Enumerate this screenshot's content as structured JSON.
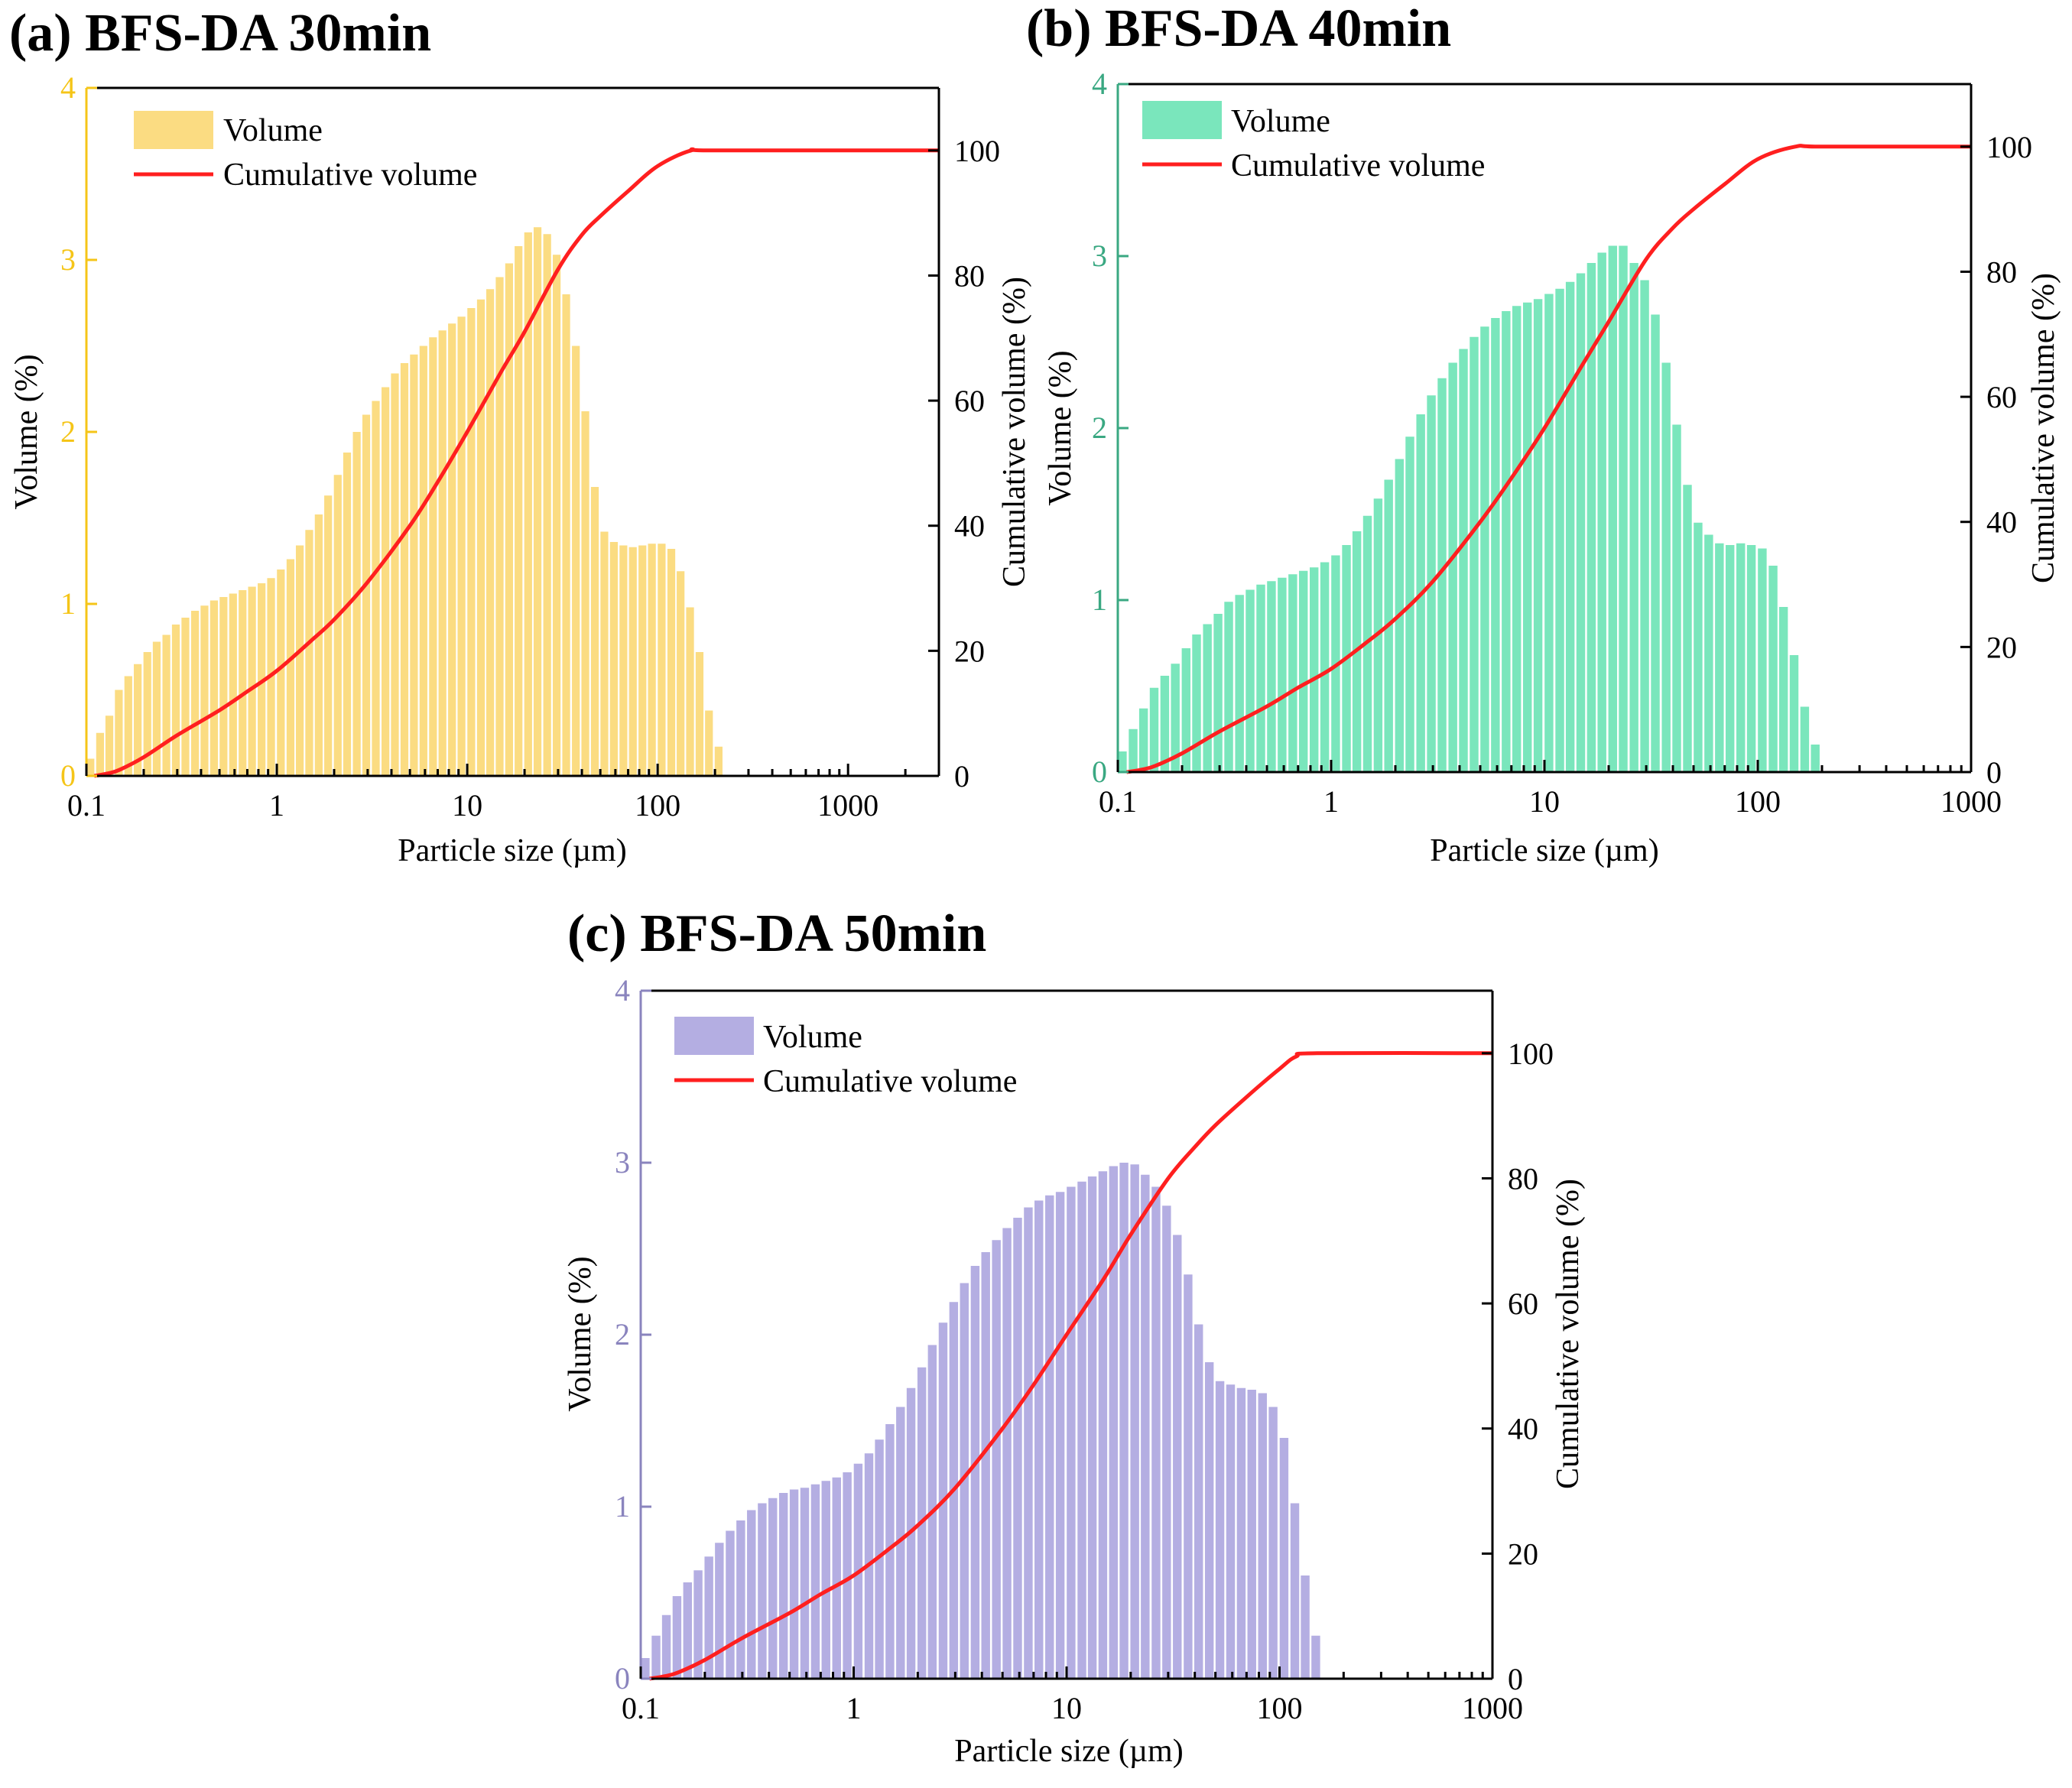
{
  "figure": {
    "tick_color_right": "#000000",
    "cumulative_color": "#ff1f1f"
  },
  "chart_data": [
    {
      "panel": "a",
      "type": "bar",
      "title": "(a) BFS-DA 30min",
      "xlabel": "Particle size (µm)",
      "ylabel": "Volume (%)",
      "y2label": "Cumulative volume (%)",
      "xscale": "log",
      "xlim": [
        0.1,
        3000
      ],
      "ylim": [
        0,
        4
      ],
      "y2lim": [
        0,
        110
      ],
      "x_ticks": [
        0.1,
        1,
        10,
        100,
        1000
      ],
      "x_tick_labels": [
        "0.1",
        "1",
        "10",
        "100",
        "1000"
      ],
      "y_ticks": [
        0,
        1,
        2,
        3,
        4
      ],
      "y_tick_labels": [
        "0",
        "1",
        "2",
        "3",
        "4"
      ],
      "y2_ticks": [
        0,
        20,
        40,
        60,
        80,
        100
      ],
      "y2_tick_labels": [
        "0",
        "20",
        "40",
        "60",
        "80",
        "100"
      ],
      "bar_color": "#fbdc82",
      "axis_color": "#f5c518",
      "legend": {
        "position": "top-left",
        "entries": [
          "Volume",
          "Cumulative volume"
        ]
      },
      "bars": {
        "x": [
          0.105,
          0.118,
          0.132,
          0.148,
          0.166,
          0.186,
          0.209,
          0.234,
          0.263,
          0.295,
          0.331,
          0.372,
          0.417,
          0.468,
          0.525,
          0.589,
          0.661,
          0.741,
          0.832,
          0.933,
          1.05,
          1.18,
          1.32,
          1.48,
          1.66,
          1.86,
          2.09,
          2.34,
          2.63,
          2.95,
          3.31,
          3.72,
          4.17,
          4.68,
          5.25,
          5.89,
          6.61,
          7.41,
          8.32,
          9.33,
          10.5,
          11.8,
          13.2,
          14.8,
          16.6,
          18.6,
          20.9,
          23.4,
          26.3,
          29.5,
          33.1,
          37.2,
          41.7,
          46.8,
          52.5,
          58.9,
          66.1,
          74.1,
          83.2,
          93.3,
          105,
          118,
          132,
          148,
          166,
          186,
          209
        ],
        "values": [
          0.1,
          0.25,
          0.35,
          0.5,
          0.58,
          0.65,
          0.72,
          0.78,
          0.82,
          0.88,
          0.92,
          0.96,
          0.99,
          1.02,
          1.04,
          1.06,
          1.08,
          1.1,
          1.12,
          1.15,
          1.2,
          1.26,
          1.34,
          1.43,
          1.52,
          1.63,
          1.75,
          1.88,
          2.0,
          2.1,
          2.18,
          2.26,
          2.34,
          2.4,
          2.45,
          2.5,
          2.55,
          2.59,
          2.63,
          2.67,
          2.72,
          2.77,
          2.83,
          2.9,
          2.98,
          3.08,
          3.16,
          3.19,
          3.15,
          3.03,
          2.8,
          2.5,
          2.12,
          1.68,
          1.42,
          1.36,
          1.34,
          1.33,
          1.34,
          1.35,
          1.35,
          1.32,
          1.19,
          0.98,
          0.72,
          0.38,
          0.17
        ]
      },
      "cumulative": {
        "x": [
          0.11,
          0.13,
          0.15,
          0.2,
          0.3,
          0.5,
          0.7,
          1,
          1.5,
          2,
          3,
          5,
          7,
          10,
          15,
          20,
          30,
          40,
          50,
          70,
          100,
          150,
          200,
          3000
        ],
        "values": [
          0,
          0.4,
          1,
          3,
          6.5,
          10.5,
          13.5,
          16.8,
          21.5,
          25,
          31,
          40,
          47,
          55,
          64.5,
          71,
          81,
          86.5,
          89.5,
          93.5,
          97.5,
          100,
          100,
          100
        ]
      }
    },
    {
      "panel": "b",
      "type": "bar",
      "title": "(b) BFS-DA 40min",
      "xlabel": "Particle size (µm)",
      "ylabel": "Volume (%)",
      "y2label": "Cumulative volume (%)",
      "xscale": "log",
      "xlim": [
        0.1,
        1000
      ],
      "ylim": [
        0,
        4
      ],
      "y2lim": [
        0,
        110
      ],
      "x_ticks": [
        0.1,
        1,
        10,
        100,
        1000
      ],
      "x_tick_labels": [
        "0.1",
        "1",
        "10",
        "100",
        "1000"
      ],
      "y_ticks": [
        0,
        1,
        2,
        3,
        4
      ],
      "y_tick_labels": [
        "0",
        "1",
        "2",
        "3",
        "4"
      ],
      "y2_ticks": [
        0,
        20,
        40,
        60,
        80,
        100
      ],
      "y2_tick_labels": [
        "0",
        "20",
        "40",
        "60",
        "80",
        "100"
      ],
      "bar_color": "#7ae6bc",
      "axis_color": "#3aa882",
      "legend": {
        "position": "top-left",
        "entries": [
          "Volume",
          "Cumulative volume"
        ]
      },
      "bars": {
        "x": [
          0.105,
          0.118,
          0.132,
          0.148,
          0.166,
          0.186,
          0.209,
          0.234,
          0.263,
          0.295,
          0.331,
          0.372,
          0.417,
          0.468,
          0.525,
          0.589,
          0.661,
          0.741,
          0.832,
          0.933,
          1.05,
          1.18,
          1.32,
          1.48,
          1.66,
          1.86,
          2.09,
          2.34,
          2.63,
          2.95,
          3.31,
          3.72,
          4.17,
          4.68,
          5.25,
          5.89,
          6.61,
          7.41,
          8.32,
          9.33,
          10.5,
          11.8,
          13.2,
          14.8,
          16.6,
          18.6,
          20.9,
          23.4,
          26.3,
          29.5,
          33.1,
          37.2,
          41.7,
          46.8,
          52.5,
          58.9,
          66.1,
          74.1,
          83.2,
          93.3,
          105,
          118,
          132,
          148,
          166,
          186
        ],
        "values": [
          0.12,
          0.25,
          0.37,
          0.49,
          0.56,
          0.63,
          0.72,
          0.8,
          0.86,
          0.92,
          0.99,
          1.03,
          1.06,
          1.09,
          1.11,
          1.13,
          1.15,
          1.17,
          1.19,
          1.22,
          1.26,
          1.32,
          1.4,
          1.49,
          1.59,
          1.7,
          1.82,
          1.95,
          2.08,
          2.19,
          2.29,
          2.38,
          2.46,
          2.53,
          2.59,
          2.64,
          2.68,
          2.71,
          2.73,
          2.75,
          2.78,
          2.81,
          2.85,
          2.9,
          2.96,
          3.02,
          3.06,
          3.06,
          2.96,
          2.86,
          2.66,
          2.38,
          2.02,
          1.67,
          1.45,
          1.38,
          1.33,
          1.32,
          1.33,
          1.32,
          1.3,
          1.2,
          0.96,
          0.68,
          0.38,
          0.16
        ]
      },
      "cumulative": {
        "x": [
          0.11,
          0.13,
          0.15,
          0.2,
          0.3,
          0.5,
          0.7,
          1,
          1.5,
          2,
          3,
          5,
          7,
          10,
          15,
          20,
          30,
          40,
          50,
          70,
          100,
          150,
          200,
          1000
        ],
        "values": [
          0,
          0.4,
          1,
          3,
          6.5,
          10.5,
          13.5,
          16.5,
          21,
          24.5,
          30.5,
          40,
          47,
          55,
          65,
          72,
          82,
          87,
          90,
          94,
          98,
          100,
          100,
          100
        ]
      }
    },
    {
      "panel": "c",
      "type": "bar",
      "title": "(c) BFS-DA 50min",
      "xlabel": "Particle size (µm)",
      "ylabel": "Volume (%)",
      "y2label": "Cumulative volume (%)",
      "xscale": "log",
      "xlim": [
        0.1,
        1000
      ],
      "ylim": [
        0,
        4
      ],
      "y2lim": [
        0,
        110
      ],
      "x_ticks": [
        0.1,
        1,
        10,
        100,
        1000
      ],
      "x_tick_labels": [
        "0.1",
        "1",
        "10",
        "100",
        "1000"
      ],
      "y_ticks": [
        0,
        1,
        2,
        3,
        4
      ],
      "y_tick_labels": [
        "0",
        "1",
        "2",
        "3",
        "4"
      ],
      "y2_ticks": [
        0,
        20,
        40,
        60,
        80,
        100
      ],
      "y2_tick_labels": [
        "0",
        "20",
        "40",
        "60",
        "80",
        "100"
      ],
      "bar_color": "#b4aee2",
      "axis_color": "#8a84be",
      "legend": {
        "position": "top-left",
        "entries": [
          "Volume",
          "Cumulative volume"
        ]
      },
      "bars": {
        "x": [
          0.105,
          0.118,
          0.132,
          0.148,
          0.166,
          0.186,
          0.209,
          0.234,
          0.263,
          0.295,
          0.331,
          0.372,
          0.417,
          0.468,
          0.525,
          0.589,
          0.661,
          0.741,
          0.832,
          0.933,
          1.05,
          1.18,
          1.32,
          1.48,
          1.66,
          1.86,
          2.09,
          2.34,
          2.63,
          2.95,
          3.31,
          3.72,
          4.17,
          4.68,
          5.25,
          5.89,
          6.61,
          7.41,
          8.32,
          9.33,
          10.5,
          11.8,
          13.2,
          14.8,
          16.6,
          18.6,
          20.9,
          23.4,
          26.3,
          29.5,
          33.1,
          37.2,
          41.7,
          46.8,
          52.5,
          58.9,
          66.1,
          74.1,
          83.2,
          93.3,
          105,
          118,
          132,
          148
        ],
        "values": [
          0.12,
          0.25,
          0.37,
          0.48,
          0.56,
          0.63,
          0.71,
          0.79,
          0.86,
          0.92,
          0.98,
          1.02,
          1.05,
          1.08,
          1.1,
          1.11,
          1.13,
          1.15,
          1.17,
          1.2,
          1.25,
          1.31,
          1.39,
          1.48,
          1.58,
          1.69,
          1.81,
          1.94,
          2.07,
          2.19,
          2.3,
          2.4,
          2.48,
          2.55,
          2.62,
          2.68,
          2.74,
          2.78,
          2.81,
          2.83,
          2.86,
          2.89,
          2.92,
          2.95,
          2.98,
          3.0,
          2.99,
          2.93,
          2.86,
          2.75,
          2.58,
          2.35,
          2.06,
          1.84,
          1.73,
          1.71,
          1.69,
          1.68,
          1.66,
          1.58,
          1.4,
          1.02,
          0.6,
          0.25
        ]
      },
      "cumulative": {
        "x": [
          0.11,
          0.13,
          0.15,
          0.2,
          0.3,
          0.5,
          0.7,
          1,
          1.5,
          2,
          3,
          5,
          7,
          10,
          15,
          20,
          30,
          40,
          50,
          70,
          100,
          120,
          150,
          1000
        ],
        "values": [
          0,
          0.4,
          1,
          3,
          6.5,
          10.5,
          13.5,
          16.5,
          21,
          24.5,
          30.5,
          40,
          47,
          55,
          64,
          71,
          80,
          85,
          88.5,
          93,
          97.5,
          99.5,
          100,
          100
        ]
      }
    }
  ]
}
